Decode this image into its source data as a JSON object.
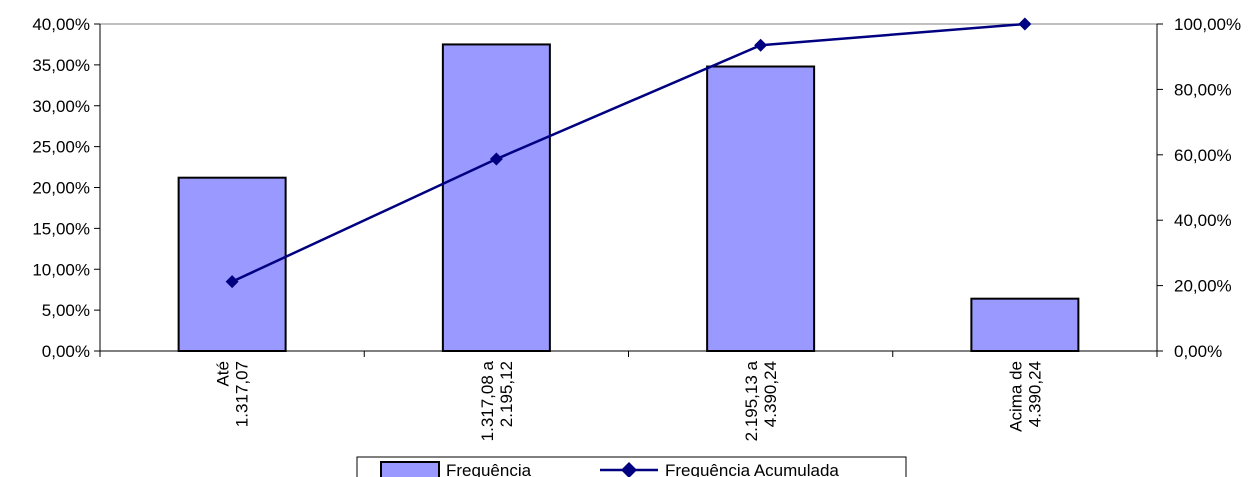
{
  "chart_data": {
    "type": "bar",
    "categories": [
      [
        "Até",
        "1.317,07"
      ],
      [
        "1.317,08 a",
        "2.195,12"
      ],
      [
        "2.195,13 a",
        "4.390,24"
      ],
      [
        "Acima de",
        "4.390,24"
      ]
    ],
    "series": [
      {
        "name": "Frequência",
        "type": "bar",
        "axis": "left",
        "values": [
          21.2,
          37.5,
          34.8,
          6.4
        ],
        "color": "#9999ff"
      },
      {
        "name": "Frequência Acumulada",
        "type": "line",
        "axis": "right",
        "values": [
          21.2,
          58.7,
          93.5,
          100.0
        ],
        "color": "#000080"
      }
    ],
    "y_left": {
      "min": 0,
      "max": 40,
      "step": 5,
      "tick_labels": [
        "0,00%",
        "5,00%",
        "10,00%",
        "15,00%",
        "20,00%",
        "25,00%",
        "30,00%",
        "35,00%",
        "40,00%"
      ]
    },
    "y_right": {
      "min": 0,
      "max": 100,
      "step": 20,
      "tick_labels": [
        "0,00%",
        "20,00%",
        "40,00%",
        "60,00%",
        "80,00%",
        "100,00%"
      ]
    },
    "grid": false,
    "legend_position": "bottom-center"
  },
  "legend": {
    "bar_label": "Frequência",
    "line_label": "Frequência Acumulada"
  }
}
